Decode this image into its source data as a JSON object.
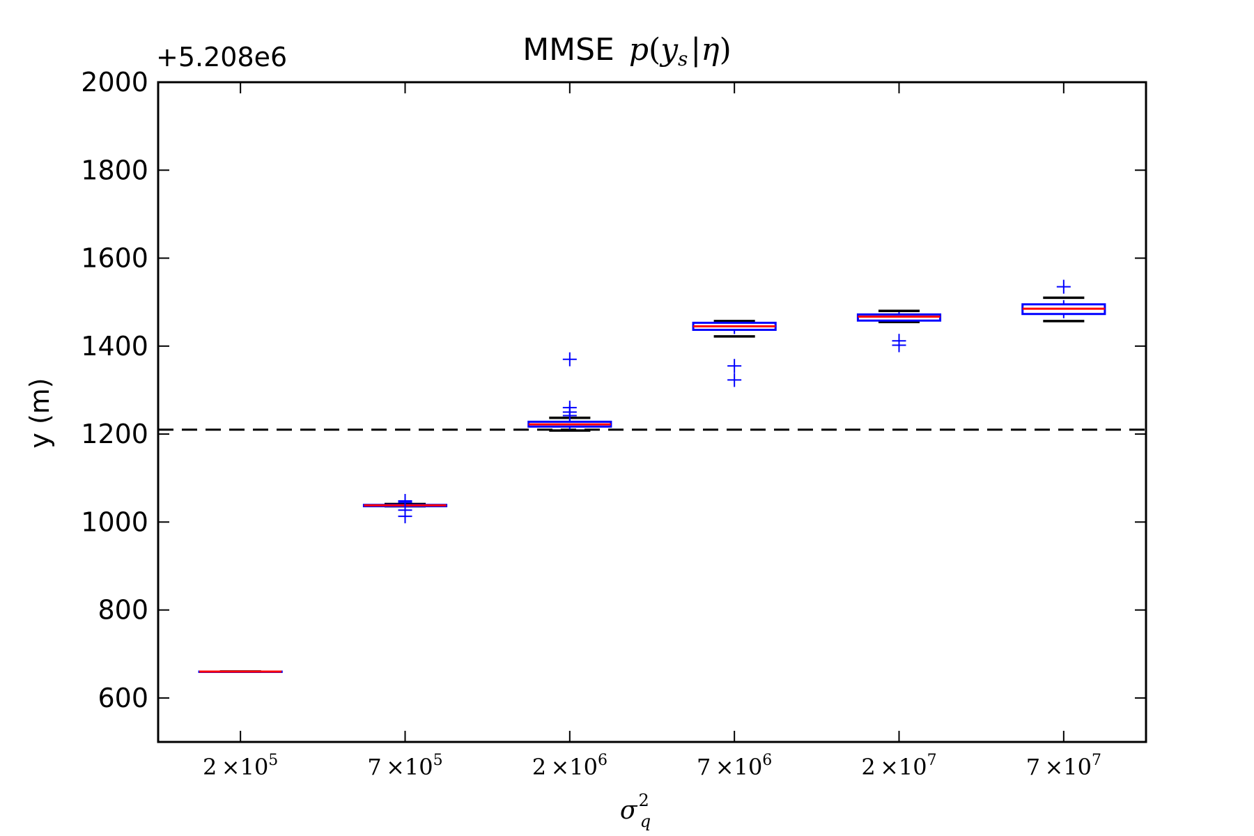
{
  "chart_data": {
    "type": "box",
    "title_prefix": "MMSE",
    "title_math": {
      "p": "p",
      "open": "(",
      "y": "y",
      "sub": "s",
      "bar": "|",
      "eta": "η",
      "close": ")"
    },
    "offset_label": "+5.208e6",
    "ylabel": "y (m)",
    "xlabel": {
      "base": "σ",
      "sup": "2",
      "sub": "q"
    },
    "ylim": [
      500,
      2000
    ],
    "yticks": [
      600,
      800,
      1000,
      1200,
      1400,
      1600,
      1800,
      2000
    ],
    "reference_line": 1210,
    "categories": [
      {
        "base": "2",
        "times": "×",
        "ten": "10",
        "exp": "5"
      },
      {
        "base": "7",
        "times": "×",
        "ten": "10",
        "exp": "5"
      },
      {
        "base": "2",
        "times": "×",
        "ten": "10",
        "exp": "6"
      },
      {
        "base": "7",
        "times": "×",
        "ten": "10",
        "exp": "6"
      },
      {
        "base": "2",
        "times": "×",
        "ten": "10",
        "exp": "7"
      },
      {
        "base": "7",
        "times": "×",
        "ten": "10",
        "exp": "7"
      }
    ],
    "boxes": [
      {
        "whislo": 660,
        "q1": 660,
        "med": 660,
        "q3": 660,
        "whishi": 660,
        "fliers": []
      },
      {
        "whislo": 1036,
        "q1": 1036,
        "med": 1038,
        "q3": 1039,
        "whishi": 1041,
        "fliers": [
          1013,
          1027,
          1045,
          1048
        ]
      },
      {
        "whislo": 1208,
        "q1": 1217,
        "med": 1222,
        "q3": 1228,
        "whishi": 1237,
        "fliers": [
          1242,
          1250,
          1260,
          1370
        ]
      },
      {
        "whislo": 1422,
        "q1": 1437,
        "med": 1445,
        "q3": 1453,
        "whishi": 1457,
        "fliers": [
          1323,
          1355
        ]
      },
      {
        "whislo": 1455,
        "q1": 1458,
        "med": 1467,
        "q3": 1472,
        "whishi": 1480,
        "fliers": [
          1402,
          1412
        ]
      },
      {
        "whislo": 1457,
        "q1": 1473,
        "med": 1485,
        "q3": 1495,
        "whishi": 1510,
        "fliers": [
          1535
        ]
      }
    ],
    "colors": {
      "box": "#0000ff",
      "median": "#ff0000",
      "whisker": "#000000",
      "flier": "#0000ff",
      "reference": "#000000",
      "axes": "#000000"
    }
  }
}
